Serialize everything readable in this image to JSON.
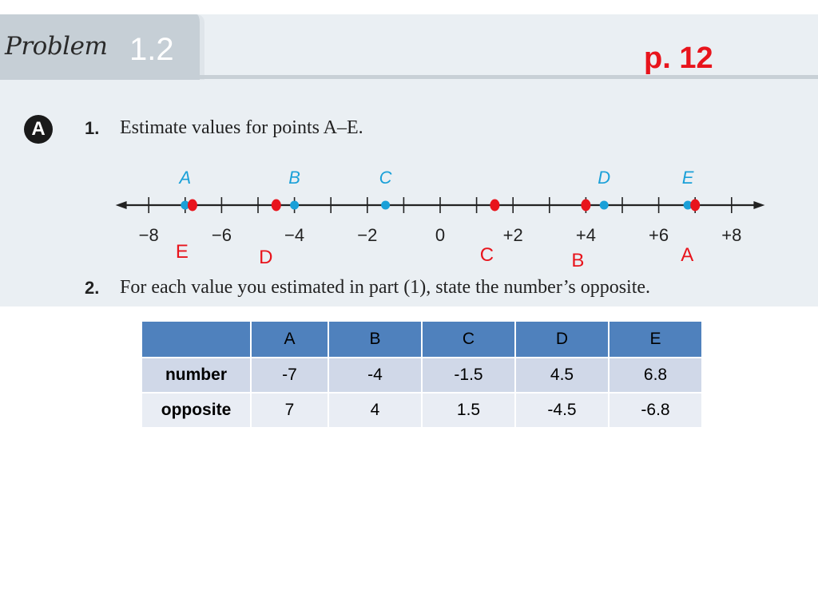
{
  "header": {
    "problem_word": "Problem",
    "problem_number": "1.2",
    "page_ref": "p. 12"
  },
  "part": {
    "badge": "A",
    "q1_number": "1.",
    "q1_text": "Estimate values for points A–E.",
    "q2_number": "2.",
    "q2_text": "For each value you estimated in part (1), state the number’s opposite."
  },
  "number_line": {
    "min": -9,
    "max": 9,
    "tick_labels": [
      {
        "value": -8,
        "text": "−8"
      },
      {
        "value": -6,
        "text": "−6"
      },
      {
        "value": -4,
        "text": "−4"
      },
      {
        "value": -2,
        "text": "−2"
      },
      {
        "value": 0,
        "text": "0"
      },
      {
        "value": 2,
        "text": "+2"
      },
      {
        "value": 4,
        "text": "+4"
      },
      {
        "value": 6,
        "text": "+6"
      },
      {
        "value": 8,
        "text": "+8"
      }
    ],
    "book_points": [
      {
        "label": "A",
        "value": -7
      },
      {
        "label": "B",
        "value": -4
      },
      {
        "label": "C",
        "value": -1.5
      },
      {
        "label": "D",
        "value": 4.5
      },
      {
        "label": "E",
        "value": 6.8
      }
    ],
    "opposite_points": [
      {
        "label": "E",
        "value": -6.8
      },
      {
        "label": "D",
        "value": -4.5
      },
      {
        "label": "C",
        "value": 1.5
      },
      {
        "label": "B",
        "value": 4
      },
      {
        "label": "A",
        "value": 7
      }
    ],
    "colors": {
      "book": "#1aa0d8",
      "opposite": "#e8141c",
      "line": "#222222"
    }
  },
  "table": {
    "headers": [
      "",
      "A",
      "B",
      "C",
      "D",
      "E"
    ],
    "rows": [
      [
        "number",
        "-7",
        "-4",
        "-1.5",
        "4.5",
        "6.8"
      ],
      [
        "opposite",
        "7",
        "4",
        "1.5",
        "-4.5",
        "-6.8"
      ]
    ]
  }
}
